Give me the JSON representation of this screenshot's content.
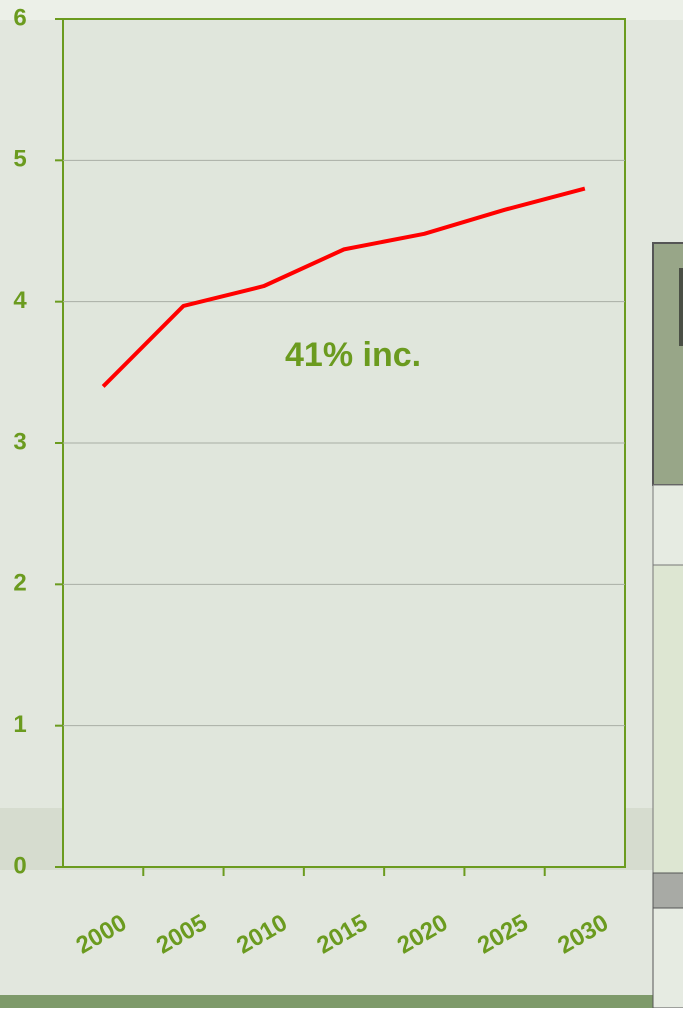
{
  "chart_data": {
    "type": "line",
    "categories": [
      "2000",
      "2005",
      "2010",
      "2015",
      "2020",
      "2025",
      "2030"
    ],
    "series": [
      {
        "color": "#ff0000",
        "values": [
          3.4,
          3.97,
          4.11,
          4.37,
          4.48,
          4.65,
          4.8
        ]
      }
    ],
    "ylim": [
      0,
      6
    ],
    "yticks": [
      0,
      1,
      2,
      3,
      4,
      5,
      6
    ],
    "grid": true,
    "annotation": "41% inc."
  }
}
